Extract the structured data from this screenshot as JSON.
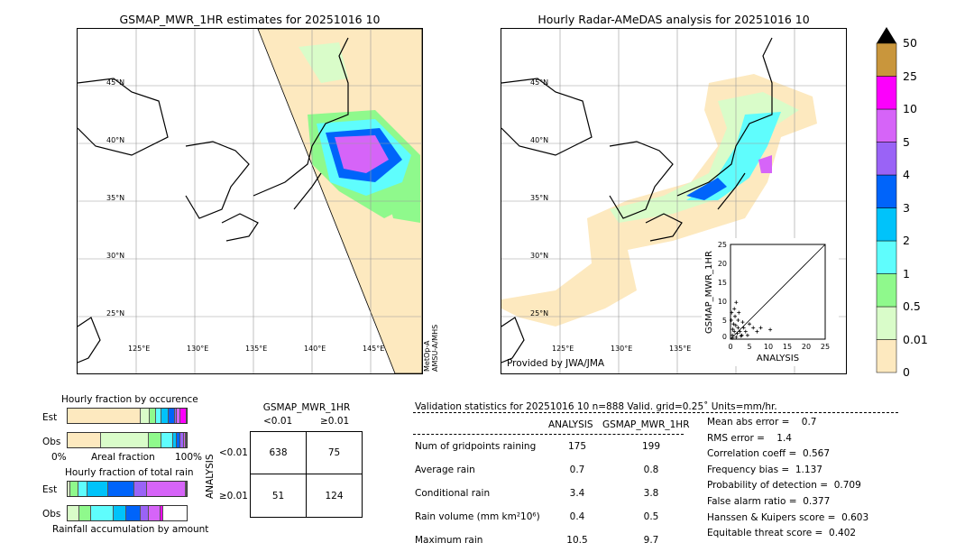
{
  "left_map": {
    "title": "GSMAP_MWR_1HR estimates for 20251016 10",
    "lat_labels": [
      "45°N",
      "40°N",
      "35°N",
      "30°N",
      "25°N"
    ],
    "lon_labels": [
      "125°E",
      "130°E",
      "135°E",
      "140°E",
      "145°E"
    ],
    "side_label": "MetOp-A\nAMSU-A/MHS"
  },
  "right_map": {
    "title": "Hourly Radar-AMeDAS analysis for 20251016 10",
    "lat_labels": [
      "45°N",
      "40°N",
      "35°N",
      "30°N",
      "25°N"
    ],
    "lon_labels": [
      "125°E",
      "130°E",
      "135°E"
    ],
    "credit": "Provided by JWA/JMA"
  },
  "colorbar": {
    "levels": [
      "0",
      "0.01",
      "0.5",
      "1",
      "2",
      "3",
      "4",
      "5",
      "10",
      "25",
      "50"
    ],
    "colors": [
      "#fde9bf",
      "#d9fcc9",
      "#8ff98c",
      "#5ffdfd",
      "#00c3fa",
      "#0064fa",
      "#9a63f6",
      "#d664f8",
      "#fc00fc",
      "#c9963c"
    ]
  },
  "chart_data": {
    "type": "scatter",
    "xlabel": "ANALYSIS",
    "ylabel": "GSMAP_MWR_1HR",
    "xlim": [
      0,
      25
    ],
    "ylim": [
      0,
      25
    ],
    "xticks": [
      "0",
      "5",
      "10",
      "15",
      "20",
      "25"
    ],
    "yticks": [
      "0",
      "5",
      "10",
      "15",
      "20",
      "25"
    ],
    "points": [
      [
        0.5,
        1
      ],
      [
        1,
        2
      ],
      [
        1.5,
        0.5
      ],
      [
        2,
        3
      ],
      [
        0.8,
        4
      ],
      [
        1.2,
        6
      ],
      [
        2.5,
        2
      ],
      [
        3,
        1
      ],
      [
        0.3,
        7
      ],
      [
        1,
        8
      ],
      [
        2,
        5
      ],
      [
        3.5,
        3
      ],
      [
        4,
        2
      ],
      [
        5,
        4
      ],
      [
        6,
        3
      ],
      [
        7,
        2
      ],
      [
        8,
        3
      ],
      [
        10.5,
        2.5
      ],
      [
        1.5,
        9.7
      ],
      [
        0.5,
        0.3
      ],
      [
        2.8,
        0.8
      ],
      [
        4.5,
        1
      ],
      [
        1.8,
        1.5
      ],
      [
        0.6,
        2.6
      ],
      [
        3.2,
        4.5
      ],
      [
        0.2,
        5
      ],
      [
        2.2,
        7
      ],
      [
        1.4,
        3.6
      ]
    ]
  },
  "occurrence": {
    "title": "Hourly fraction by occurence",
    "est_label": "Est",
    "obs_label": "Obs",
    "axis_left": "0%",
    "axis_mid": "Areal fraction",
    "axis_right": "100%",
    "est": [
      61,
      8,
      5,
      5,
      6,
      5,
      2,
      3,
      5
    ],
    "obs": [
      28,
      40,
      11,
      10,
      3,
      3,
      3,
      1,
      1
    ]
  },
  "total_rain": {
    "title": "Hourly fraction of total rain",
    "est_label": "Est",
    "obs_label": "Obs",
    "footer": "Rainfall accumulation by amount",
    "est": [
      2,
      7,
      8,
      17,
      22,
      11,
      32,
      1
    ],
    "obs": [
      10,
      10,
      19,
      10,
      12,
      7,
      10,
      2
    ]
  },
  "contingency": {
    "col_title": "GSMAP_MWR_1HR",
    "col_labels": [
      "<0.01",
      "≥0.01"
    ],
    "row_title": "ANALYSIS",
    "row_labels": [
      "<0.01",
      "≥0.01"
    ],
    "cells": [
      [
        "638",
        "75"
      ],
      [
        "51",
        "124"
      ]
    ]
  },
  "validation": {
    "header": "Validation statistics for 20251016 10  n=888 Valid. grid=0.25˚ Units=mm/hr.",
    "col1": "ANALYSIS",
    "col2": "GSMAP_MWR_1HR",
    "rows": [
      {
        "label": "Num of gridpoints raining",
        "a": "175",
        "g": "199"
      },
      {
        "label": "Average rain",
        "a": "0.7",
        "g": "0.8"
      },
      {
        "label": "Conditional rain",
        "a": "3.4",
        "g": "3.8"
      },
      {
        "label": "Rain volume (mm km²10⁶)",
        "a": "0.4",
        "g": "0.5"
      },
      {
        "label": "Maximum rain",
        "a": "10.5",
        "g": "9.7"
      }
    ],
    "scores": [
      "Mean abs error =    0.7",
      "RMS error =    1.4",
      "Correlation coeff =  0.567",
      "Frequency bias =  1.137",
      "Probability of detection =  0.709",
      "False alarm ratio =  0.377",
      "Hanssen & Kuipers score =  0.603",
      "Equitable threat score =  0.402"
    ]
  }
}
